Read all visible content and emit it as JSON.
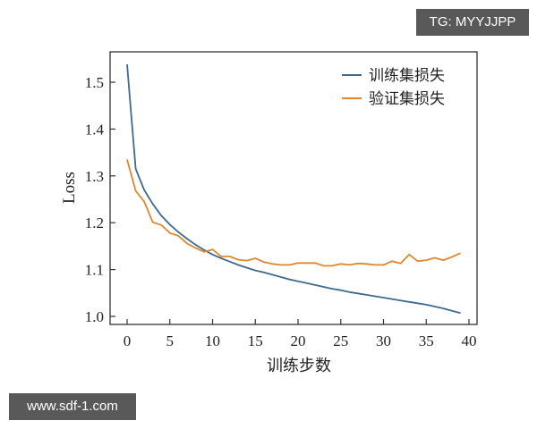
{
  "watermarks": {
    "top_right": "TG: MYYJJPP",
    "bottom_left": "www.sdf-1.com"
  },
  "chart_data": {
    "type": "line",
    "title": "",
    "xlabel": "训练步数",
    "ylabel": "Loss",
    "xlim": [
      -1,
      41
    ],
    "ylim": [
      0.98,
      1.555
    ],
    "xticks": [
      0,
      5,
      10,
      15,
      20,
      25,
      30,
      35,
      40
    ],
    "yticks": [
      1.0,
      1.1,
      1.2,
      1.3,
      1.4,
      1.5
    ],
    "ytick_labels": [
      "1.0",
      "1.1",
      "1.2",
      "1.3",
      "1.4",
      "1.5"
    ],
    "grid": false,
    "legend_position": "upper right",
    "x": [
      0,
      1,
      2,
      3,
      4,
      5,
      6,
      7,
      8,
      9,
      10,
      11,
      12,
      13,
      14,
      15,
      16,
      17,
      18,
      19,
      20,
      21,
      22,
      23,
      24,
      25,
      26,
      27,
      28,
      29,
      30,
      31,
      32,
      33,
      34,
      35,
      36,
      37,
      38,
      39
    ],
    "series": [
      {
        "name": "训练集损失",
        "color": "#3d6a8e",
        "values": [
          1.538,
          1.315,
          1.27,
          1.24,
          1.215,
          1.196,
          1.18,
          1.166,
          1.153,
          1.142,
          1.132,
          1.124,
          1.117,
          1.11,
          1.104,
          1.098,
          1.094,
          1.089,
          1.084,
          1.079,
          1.075,
          1.071,
          1.067,
          1.063,
          1.059,
          1.056,
          1.052,
          1.049,
          1.046,
          1.043,
          1.04,
          1.037,
          1.034,
          1.031,
          1.028,
          1.025,
          1.021,
          1.017,
          1.012,
          1.007
        ]
      },
      {
        "name": "验证集损失",
        "color": "#e0862e",
        "values": [
          1.335,
          1.268,
          1.245,
          1.201,
          1.195,
          1.178,
          1.172,
          1.156,
          1.146,
          1.138,
          1.143,
          1.128,
          1.128,
          1.121,
          1.119,
          1.124,
          1.116,
          1.112,
          1.11,
          1.11,
          1.114,
          1.114,
          1.114,
          1.108,
          1.108,
          1.112,
          1.11,
          1.113,
          1.112,
          1.11,
          1.11,
          1.118,
          1.113,
          1.132,
          1.118,
          1.12,
          1.125,
          1.12,
          1.127,
          1.135
        ]
      }
    ]
  }
}
